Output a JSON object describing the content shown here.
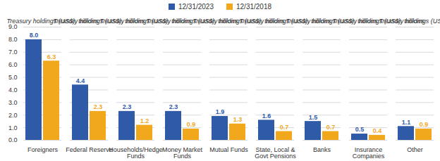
{
  "chart_data": {
    "type": "bar",
    "ylabel": "Treasury holdings (US$), trillions",
    "categories": [
      "Foreigners",
      "Federal Reserve",
      "Households/Hedge\nFunds",
      "Money Market\nFunds",
      "Mutual Funds",
      "State, Local &\nGovt Pensions",
      "Banks",
      "Insurance\nCompanies",
      "Other"
    ],
    "series": [
      {
        "name": "12/31/2023",
        "color": "#2e5aa8",
        "values": [
          8.0,
          4.4,
          2.3,
          2.3,
          1.9,
          1.6,
          1.5,
          0.5,
          1.1
        ],
        "value_labels": [
          "8.0",
          "4.4",
          "2.3",
          "2.3",
          "1.9",
          "1.6",
          "1.5",
          "0.5",
          "1.1"
        ]
      },
      {
        "name": "12/31/2018",
        "color": "#f2a81d",
        "values": [
          6.3,
          2.3,
          1.2,
          0.9,
          1.3,
          0.7,
          0.7,
          0.4,
          0.9
        ],
        "value_labels": [
          "6.3",
          "2.3",
          "1.2",
          "0.9",
          "1.3",
          "0.7",
          "0.7",
          "0.4",
          "0.9"
        ]
      }
    ],
    "ylim": [
      0,
      9
    ],
    "yticks": [
      {
        "value": 0,
        "label": "0.0"
      },
      {
        "value": 1,
        "label": "1.0"
      },
      {
        "value": 2,
        "label": "2.0"
      },
      {
        "value": 3,
        "label": "3.0"
      },
      {
        "value": 4,
        "label": "4.0"
      },
      {
        "value": 5,
        "label": "5.0"
      },
      {
        "value": 6,
        "label": "6.0"
      },
      {
        "value": 7,
        "label": "7.0"
      },
      {
        "value": 8,
        "label": "8.0"
      },
      {
        "value": 9,
        "label": "9.0"
      }
    ],
    "grid": true,
    "data_labels": true,
    "legend": "top"
  }
}
